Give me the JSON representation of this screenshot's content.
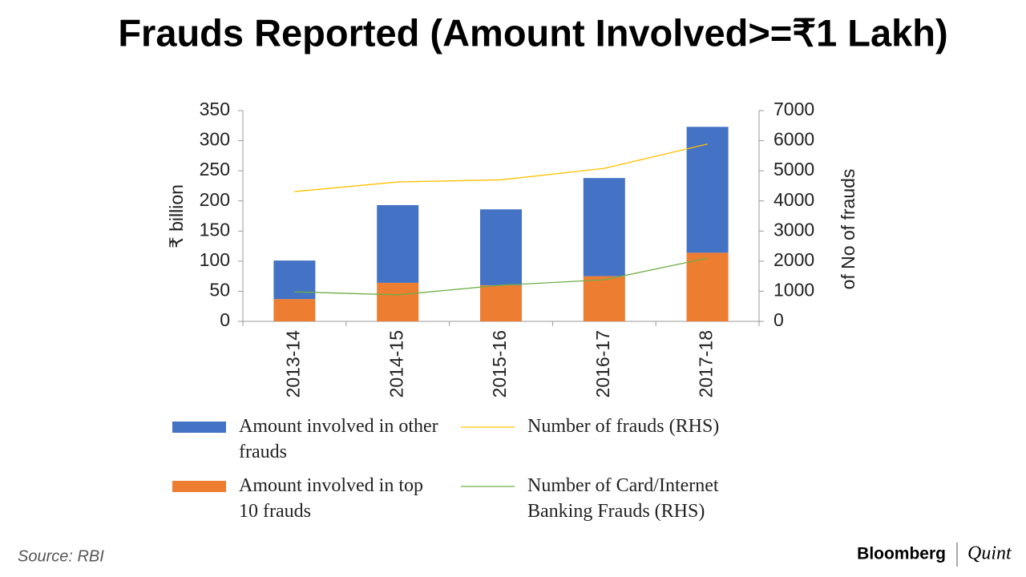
{
  "chart_data": {
    "type": "bar",
    "title": "Frauds Reported (Amount Involved>=₹1 Lakh)",
    "ylabel": "₹ billion",
    "y2label": "of No of frauds",
    "categories": [
      "2013-14",
      "2014-15",
      "2015-16",
      "2016-17",
      "2017-18"
    ],
    "series": [
      {
        "name": "Amount involved in other frauds",
        "type": "bar",
        "color": "#4472c4",
        "values": [
          64,
          129,
          126,
          163,
          209
        ]
      },
      {
        "name": "Amount involved in top 10 frauds",
        "type": "bar",
        "color": "#ed7d31",
        "values": [
          37,
          64,
          60,
          75,
          114
        ]
      },
      {
        "name": "Number of frauds (RHS)",
        "type": "line",
        "axis": "y2",
        "color": "#ffc000",
        "values": [
          4310,
          4630,
          4700,
          5080,
          5890
        ]
      },
      {
        "name": "Number of Card/Internet Banking Frauds (RHS)",
        "type": "line",
        "axis": "y2",
        "color": "#70ad47",
        "values": [
          980,
          880,
          1200,
          1380,
          2100
        ]
      }
    ],
    "stacked": true,
    "ylim": [
      0,
      350
    ],
    "yticks": [
      0,
      50,
      100,
      150,
      200,
      250,
      300,
      350
    ],
    "y2lim": [
      0,
      7000
    ],
    "y2ticks": [
      0,
      1000,
      2000,
      3000,
      4000,
      5000,
      6000,
      7000
    ],
    "source": "Source: RBI",
    "brand": "Bloomberg",
    "brand_suffix": "Quint"
  }
}
